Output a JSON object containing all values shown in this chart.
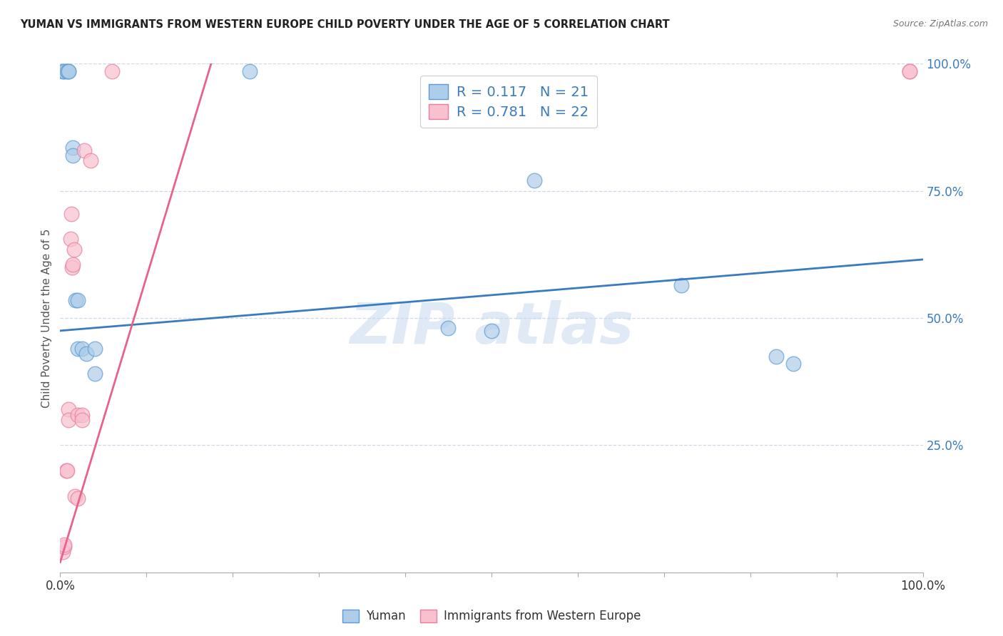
{
  "title": "YUMAN VS IMMIGRANTS FROM WESTERN EUROPE CHILD POVERTY UNDER THE AGE OF 5 CORRELATION CHART",
  "source": "Source: ZipAtlas.com",
  "ylabel": "Child Poverty Under the Age of 5",
  "xlim": [
    0.0,
    1.0
  ],
  "ylim": [
    0.0,
    1.0
  ],
  "yticks": [
    0.0,
    0.25,
    0.5,
    0.75,
    1.0
  ],
  "ytick_labels": [
    "",
    "25.0%",
    "50.0%",
    "75.0%",
    "100.0%"
  ],
  "blue_R": "0.117",
  "blue_N": "21",
  "pink_R": "0.781",
  "pink_N": "22",
  "blue_color": "#aecde8",
  "pink_color": "#f9c0ce",
  "blue_edge_color": "#5b9bd5",
  "pink_edge_color": "#e87da0",
  "blue_line_color": "#3a7bbf",
  "pink_line_color": "#e8638a",
  "label_color": "#3a7bbf",
  "legend_label_blue": "Yuman",
  "legend_label_pink": "Immigrants from Western Europe",
  "blue_scatter_x": [
    0.003,
    0.005,
    0.008,
    0.01,
    0.01,
    0.015,
    0.015,
    0.018,
    0.02,
    0.02,
    0.025,
    0.03,
    0.04,
    0.04,
    0.22,
    0.45,
    0.5,
    0.55,
    0.72,
    0.83,
    0.85
  ],
  "blue_scatter_y": [
    0.985,
    0.985,
    0.985,
    0.985,
    0.985,
    0.835,
    0.82,
    0.535,
    0.535,
    0.44,
    0.44,
    0.43,
    0.39,
    0.44,
    0.985,
    0.48,
    0.475,
    0.77,
    0.565,
    0.425,
    0.41
  ],
  "pink_scatter_x": [
    0.003,
    0.005,
    0.005,
    0.007,
    0.008,
    0.01,
    0.01,
    0.012,
    0.013,
    0.014,
    0.015,
    0.016,
    0.017,
    0.02,
    0.02,
    0.025,
    0.025,
    0.028,
    0.035,
    0.06,
    0.985,
    0.985
  ],
  "pink_scatter_y": [
    0.04,
    0.05,
    0.055,
    0.2,
    0.2,
    0.32,
    0.3,
    0.655,
    0.705,
    0.6,
    0.605,
    0.635,
    0.15,
    0.145,
    0.31,
    0.31,
    0.3,
    0.83,
    0.81,
    0.985,
    0.985,
    0.985
  ],
  "blue_line_x": [
    0.0,
    1.0
  ],
  "blue_line_y": [
    0.475,
    0.615
  ],
  "pink_line_x": [
    0.0,
    0.175
  ],
  "pink_line_y": [
    0.02,
    1.0
  ],
  "watermark_text": "ZIP atlas",
  "background_color": "#ffffff",
  "grid_color": "#d0d8e8"
}
